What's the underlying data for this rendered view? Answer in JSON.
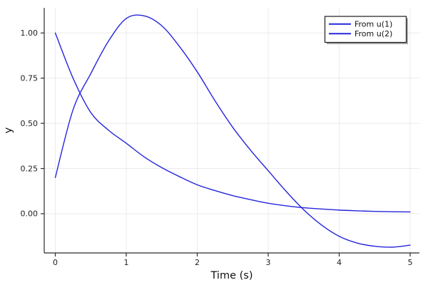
{
  "chart_data": {
    "type": "line",
    "title": "",
    "xlabel": "Time (s)",
    "ylabel": "y",
    "xlim": [
      -0.156,
      5.131
    ],
    "ylim": [
      -0.217,
      1.139
    ],
    "grid": true,
    "legend_position": "top-right",
    "xticks": {
      "values": [
        0,
        1,
        2,
        3,
        4,
        5
      ],
      "labels": [
        "0",
        "1",
        "2",
        "3",
        "4",
        "5"
      ]
    },
    "yticks": {
      "values": [
        0.0,
        0.25,
        0.5,
        0.75,
        1.0
      ],
      "labels": [
        "0.00",
        "0.25",
        "0.50",
        "0.75",
        "1.00"
      ]
    },
    "series": [
      {
        "name": "From u(1)",
        "color": "#2525dd",
        "x": [
          0,
          0.25,
          0.5,
          0.75,
          1,
          1.25,
          1.5,
          1.75,
          2,
          2.25,
          2.5,
          2.75,
          3,
          3.25,
          3.5,
          3.75,
          4,
          4.25,
          4.5,
          4.75,
          5
        ],
        "y": [
          1.0,
          0.75,
          0.56,
          0.462,
          0.39,
          0.315,
          0.255,
          0.205,
          0.16,
          0.128,
          0.1,
          0.078,
          0.058,
          0.044,
          0.033,
          0.026,
          0.02,
          0.016,
          0.013,
          0.011,
          0.01
        ]
      },
      {
        "name": "From u(2)",
        "color": "#2525dd",
        "x": [
          0,
          0.25,
          0.5,
          0.75,
          1,
          1.25,
          1.5,
          1.75,
          2,
          2.25,
          2.5,
          2.75,
          3,
          3.25,
          3.5,
          3.75,
          4,
          4.25,
          4.5,
          4.75,
          5
        ],
        "y": [
          0.2,
          0.575,
          0.775,
          0.955,
          1.08,
          1.095,
          1.04,
          0.925,
          0.785,
          0.625,
          0.478,
          0.352,
          0.238,
          0.125,
          0.022,
          -0.062,
          -0.125,
          -0.162,
          -0.18,
          -0.185,
          -0.174
        ]
      }
    ]
  },
  "colors": {
    "series_blue": "#2525dd",
    "grid": "#ebebeb",
    "axis": "#2b2b2b",
    "background": "#ffffff",
    "legend_border": "#1a1a1a",
    "legend_shadow": "rgba(60,60,60,0.45)"
  }
}
